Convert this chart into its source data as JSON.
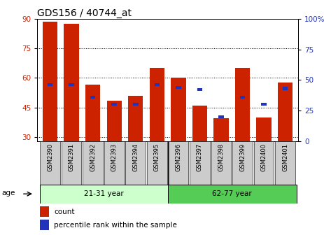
{
  "title": "GDS156 / 40744_at",
  "samples": [
    "GSM2390",
    "GSM2391",
    "GSM2392",
    "GSM2393",
    "GSM2394",
    "GSM2395",
    "GSM2396",
    "GSM2397",
    "GSM2398",
    "GSM2399",
    "GSM2400",
    "GSM2401"
  ],
  "red_values": [
    88.5,
    87.5,
    56.5,
    48.5,
    51.0,
    65.0,
    60.0,
    46.0,
    39.5,
    65.0,
    40.0,
    57.5
  ],
  "blue_percentiles": [
    46,
    46,
    36,
    30,
    30,
    46,
    44,
    42,
    20,
    36,
    30,
    43
  ],
  "ymin": 28,
  "ymax": 90,
  "yticks_left": [
    30,
    45,
    60,
    75,
    90
  ],
  "yticks_right": [
    0,
    25,
    50,
    75,
    100
  ],
  "group1_label": "21-31 year",
  "group2_label": "62-77 year",
  "age_label": "age",
  "legend_count": "count",
  "legend_percentile": "percentile rank within the sample",
  "bar_color": "#cc2200",
  "blue_color": "#2233bb",
  "group1_bg": "#ccffcc",
  "group2_bg": "#55cc55",
  "xlabel_bg": "#cccccc",
  "bar_width": 0.7,
  "title_fontsize": 10,
  "tick_fontsize": 7.5
}
